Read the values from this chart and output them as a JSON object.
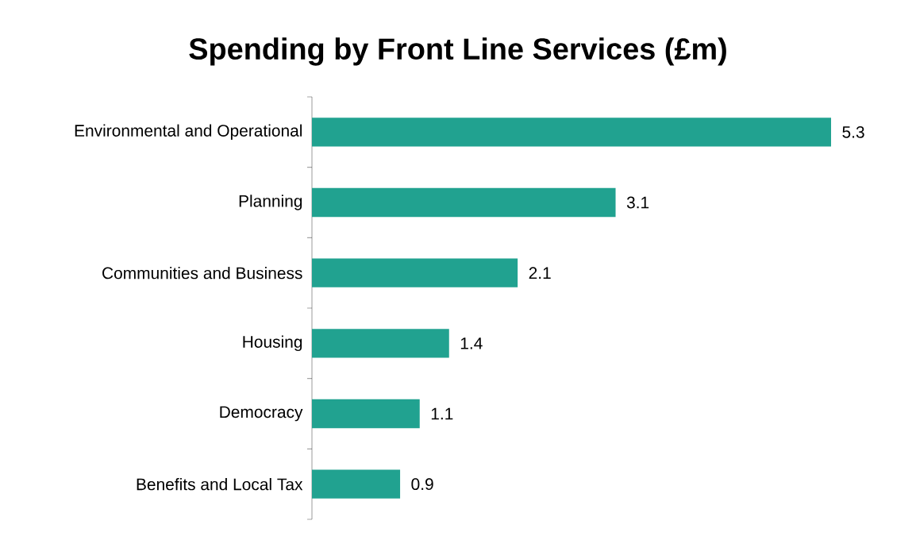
{
  "chart_data": {
    "type": "bar",
    "orientation": "horizontal",
    "title": "Spending by Front Line Services (£m)",
    "categories": [
      "Environmental and Operational",
      "Planning",
      "Communities and Business",
      "Housing",
      "Democracy",
      "Benefits and Local Tax"
    ],
    "values": [
      5.3,
      3.1,
      2.1,
      1.4,
      1.1,
      0.9
    ],
    "color": "#21a290",
    "data_labels": true
  }
}
